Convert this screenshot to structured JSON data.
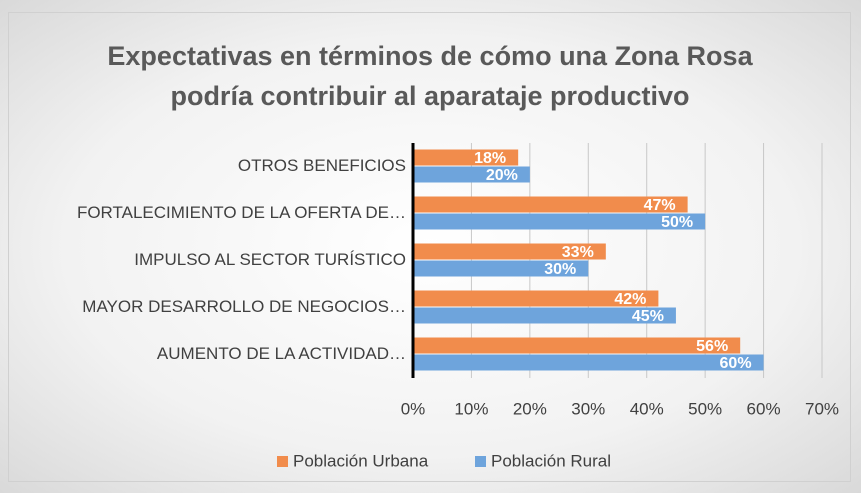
{
  "chart_data": {
    "type": "bar",
    "orientation": "horizontal",
    "title": "Expectativas en términos de cómo una Zona Rosa podría contribuir al aparataje productivo",
    "categories": [
      "OTROS BENEFICIOS",
      "FORTALECIMIENTO DE LA OFERTA DE…",
      "IMPULSO AL SECTOR TURÍSTICO",
      "MAYOR DESARROLLO DE NEGOCIOS…",
      "AUMENTO DE LA ACTIVIDAD…"
    ],
    "series": [
      {
        "name": "Población Urbana",
        "color": "#f18c4c",
        "values": [
          18,
          47,
          33,
          42,
          56
        ],
        "value_labels": [
          "18%",
          "47%",
          "33%",
          "42%",
          "56%"
        ]
      },
      {
        "name": "Población Rural",
        "color": "#6ea4dc",
        "values": [
          20,
          50,
          30,
          45,
          60
        ],
        "value_labels": [
          "20%",
          "50%",
          "30%",
          "45%",
          "60%"
        ]
      }
    ],
    "xlim": [
      0,
      70
    ],
    "xticks": [
      {
        "value": 0,
        "label": "0%"
      },
      {
        "value": 10,
        "label": "10%"
      },
      {
        "value": 20,
        "label": "20%"
      },
      {
        "value": 30,
        "label": "30%"
      },
      {
        "value": 40,
        "label": "40%"
      },
      {
        "value": 50,
        "label": "50%"
      },
      {
        "value": 60,
        "label": "60%"
      },
      {
        "value": 70,
        "label": "70%"
      }
    ],
    "grid": true,
    "legend": "bottom"
  }
}
